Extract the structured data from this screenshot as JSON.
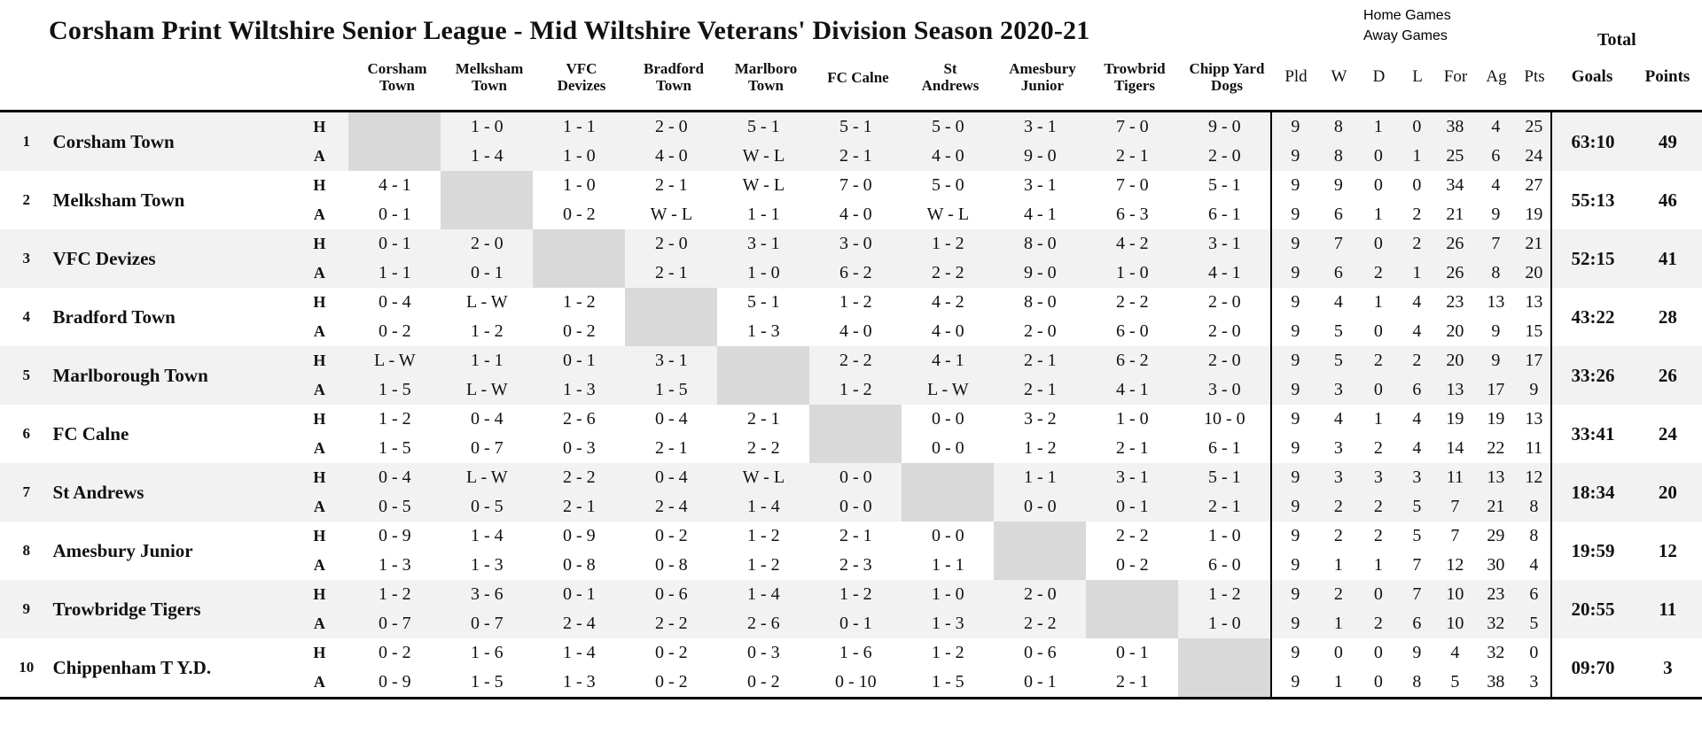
{
  "title": "Corsham Print Wiltshire Senior League - Mid Wiltshire Veterans' Division Season 2020-21",
  "legend": {
    "home": "Home Games",
    "away": "Away Games",
    "total": "Total"
  },
  "ha_labels": [
    "H",
    "A"
  ],
  "colors": {
    "row_stripe": "#f2f2f2",
    "diagonal_cell": "#d9d9d9",
    "border": "#000000"
  },
  "columns": {
    "opponents": [
      [
        "Corsham",
        "Town"
      ],
      [
        "Melksham",
        "Town"
      ],
      [
        "VFC",
        "Devizes"
      ],
      [
        "Bradford",
        "Town"
      ],
      [
        "Marlboro",
        "Town"
      ],
      [
        "FC Calne"
      ],
      [
        "St",
        "Andrews"
      ],
      [
        "Amesbury",
        "Junior"
      ],
      [
        "Trowbrid",
        "Tigers"
      ],
      [
        "Chipp Yard",
        "Dogs"
      ]
    ],
    "stats": [
      "Pld",
      "W",
      "D",
      "L",
      "For",
      "Ag",
      "Pts"
    ],
    "totals": [
      "Goals",
      "Points"
    ]
  },
  "rows": [
    {
      "pos": "1",
      "team": "Corsham Town",
      "home_scores": [
        "",
        "1 - 0",
        "1 - 1",
        "2 - 0",
        "5 - 1",
        "5 - 1",
        "5 - 0",
        "3 - 1",
        "7 - 0",
        "9 - 0"
      ],
      "home_stats": [
        "9",
        "8",
        "1",
        "0",
        "38",
        "4",
        "25"
      ],
      "away_scores": [
        "",
        "1 - 4",
        "1 - 0",
        "4 - 0",
        "W - L",
        "2 - 1",
        "4 - 0",
        "9 - 0",
        "2 - 1",
        "2 - 0"
      ],
      "away_stats": [
        "9",
        "8",
        "0",
        "1",
        "25",
        "6",
        "24"
      ],
      "goals": "63:10",
      "points": "49"
    },
    {
      "pos": "2",
      "team": "Melksham Town",
      "home_scores": [
        "4 - 1",
        "",
        "1 - 0",
        "2 - 1",
        "W - L",
        "7 - 0",
        "5 - 0",
        "3 - 1",
        "7 - 0",
        "5 - 1"
      ],
      "home_stats": [
        "9",
        "9",
        "0",
        "0",
        "34",
        "4",
        "27"
      ],
      "away_scores": [
        "0 - 1",
        "",
        "0 - 2",
        "W - L",
        "1 - 1",
        "4 - 0",
        "W - L",
        "4 - 1",
        "6 - 3",
        "6 - 1"
      ],
      "away_stats": [
        "9",
        "6",
        "1",
        "2",
        "21",
        "9",
        "19"
      ],
      "goals": "55:13",
      "points": "46"
    },
    {
      "pos": "3",
      "team": "VFC Devizes",
      "home_scores": [
        "0 - 1",
        "2 - 0",
        "",
        "2 - 0",
        "3 - 1",
        "3 - 0",
        "1 - 2",
        "8 - 0",
        "4 - 2",
        "3 - 1"
      ],
      "home_stats": [
        "9",
        "7",
        "0",
        "2",
        "26",
        "7",
        "21"
      ],
      "away_scores": [
        "1 - 1",
        "0 - 1",
        "",
        "2 - 1",
        "1 - 0",
        "6 - 2",
        "2 - 2",
        "9 - 0",
        "1 - 0",
        "4 - 1"
      ],
      "away_stats": [
        "9",
        "6",
        "2",
        "1",
        "26",
        "8",
        "20"
      ],
      "goals": "52:15",
      "points": "41"
    },
    {
      "pos": "4",
      "team": "Bradford Town",
      "home_scores": [
        "0 - 4",
        "L - W",
        "1 - 2",
        "",
        "5 - 1",
        "1 - 2",
        "4 - 2",
        "8 - 0",
        "2 - 2",
        "2 - 0"
      ],
      "home_stats": [
        "9",
        "4",
        "1",
        "4",
        "23",
        "13",
        "13"
      ],
      "away_scores": [
        "0 - 2",
        "1 - 2",
        "0 - 2",
        "",
        "1 - 3",
        "4 - 0",
        "4 - 0",
        "2 - 0",
        "6 - 0",
        "2 - 0"
      ],
      "away_stats": [
        "9",
        "5",
        "0",
        "4",
        "20",
        "9",
        "15"
      ],
      "goals": "43:22",
      "points": "28"
    },
    {
      "pos": "5",
      "team": "Marlborough Town",
      "home_scores": [
        "L - W",
        "1 - 1",
        "0 - 1",
        "3 - 1",
        "",
        "2 - 2",
        "4 - 1",
        "2 - 1",
        "6 - 2",
        "2 - 0"
      ],
      "home_stats": [
        "9",
        "5",
        "2",
        "2",
        "20",
        "9",
        "17"
      ],
      "away_scores": [
        "1 - 5",
        "L - W",
        "1 - 3",
        "1 - 5",
        "",
        "1 - 2",
        "L - W",
        "2 - 1",
        "4 - 1",
        "3 - 0"
      ],
      "away_stats": [
        "9",
        "3",
        "0",
        "6",
        "13",
        "17",
        "9"
      ],
      "goals": "33:26",
      "points": "26"
    },
    {
      "pos": "6",
      "team": "FC Calne",
      "home_scores": [
        "1 - 2",
        "0 - 4",
        "2 - 6",
        "0 - 4",
        "2 - 1",
        "",
        "0 - 0",
        "3 - 2",
        "1 - 0",
        "10 - 0"
      ],
      "home_stats": [
        "9",
        "4",
        "1",
        "4",
        "19",
        "19",
        "13"
      ],
      "away_scores": [
        "1 - 5",
        "0 - 7",
        "0 - 3",
        "2 - 1",
        "2 - 2",
        "",
        "0 - 0",
        "1 - 2",
        "2 - 1",
        "6 - 1"
      ],
      "away_stats": [
        "9",
        "3",
        "2",
        "4",
        "14",
        "22",
        "11"
      ],
      "goals": "33:41",
      "points": "24"
    },
    {
      "pos": "7",
      "team": "St Andrews",
      "home_scores": [
        "0 - 4",
        "L - W",
        "2 - 2",
        "0 - 4",
        "W - L",
        "0 - 0",
        "",
        "1 - 1",
        "3 - 1",
        "5 - 1"
      ],
      "home_stats": [
        "9",
        "3",
        "3",
        "3",
        "11",
        "13",
        "12"
      ],
      "away_scores": [
        "0 - 5",
        "0 - 5",
        "2 - 1",
        "2 - 4",
        "1 - 4",
        "0 - 0",
        "",
        "0 - 0",
        "0 - 1",
        "2 - 1"
      ],
      "away_stats": [
        "9",
        "2",
        "2",
        "5",
        "7",
        "21",
        "8"
      ],
      "goals": "18:34",
      "points": "20"
    },
    {
      "pos": "8",
      "team": "Amesbury Junior",
      "home_scores": [
        "0 - 9",
        "1 - 4",
        "0 - 9",
        "0 - 2",
        "1 - 2",
        "2 - 1",
        "0 - 0",
        "",
        "2 - 2",
        "1 - 0"
      ],
      "home_stats": [
        "9",
        "2",
        "2",
        "5",
        "7",
        "29",
        "8"
      ],
      "away_scores": [
        "1 - 3",
        "1 - 3",
        "0 - 8",
        "0 - 8",
        "1 - 2",
        "2 - 3",
        "1 - 1",
        "",
        "0 - 2",
        "6 - 0"
      ],
      "away_stats": [
        "9",
        "1",
        "1",
        "7",
        "12",
        "30",
        "4"
      ],
      "goals": "19:59",
      "points": "12"
    },
    {
      "pos": "9",
      "team": "Trowbridge Tigers",
      "home_scores": [
        "1 - 2",
        "3 - 6",
        "0 - 1",
        "0 - 6",
        "1 - 4",
        "1 - 2",
        "1 - 0",
        "2 - 0",
        "",
        "1 - 2"
      ],
      "home_stats": [
        "9",
        "2",
        "0",
        "7",
        "10",
        "23",
        "6"
      ],
      "away_scores": [
        "0 - 7",
        "0 - 7",
        "2 - 4",
        "2 - 2",
        "2 - 6",
        "0 - 1",
        "1 - 3",
        "2 - 2",
        "",
        "1 - 0"
      ],
      "away_stats": [
        "9",
        "1",
        "2",
        "6",
        "10",
        "32",
        "5"
      ],
      "goals": "20:55",
      "points": "11"
    },
    {
      "pos": "10",
      "team": "Chippenham T Y.D.",
      "home_scores": [
        "0 - 2",
        "1 - 6",
        "1 - 4",
        "0 - 2",
        "0 - 3",
        "1 - 6",
        "1 - 2",
        "0 - 6",
        "0 - 1",
        ""
      ],
      "home_stats": [
        "9",
        "0",
        "0",
        "9",
        "4",
        "32",
        "0"
      ],
      "away_scores": [
        "0 - 9",
        "1 - 5",
        "1 - 3",
        "0 - 2",
        "0 - 2",
        "0 - 10",
        "1 - 5",
        "0 - 1",
        "2 - 1",
        ""
      ],
      "away_stats": [
        "9",
        "1",
        "0",
        "8",
        "5",
        "38",
        "3"
      ],
      "goals": "09:70",
      "points": "3"
    }
  ]
}
